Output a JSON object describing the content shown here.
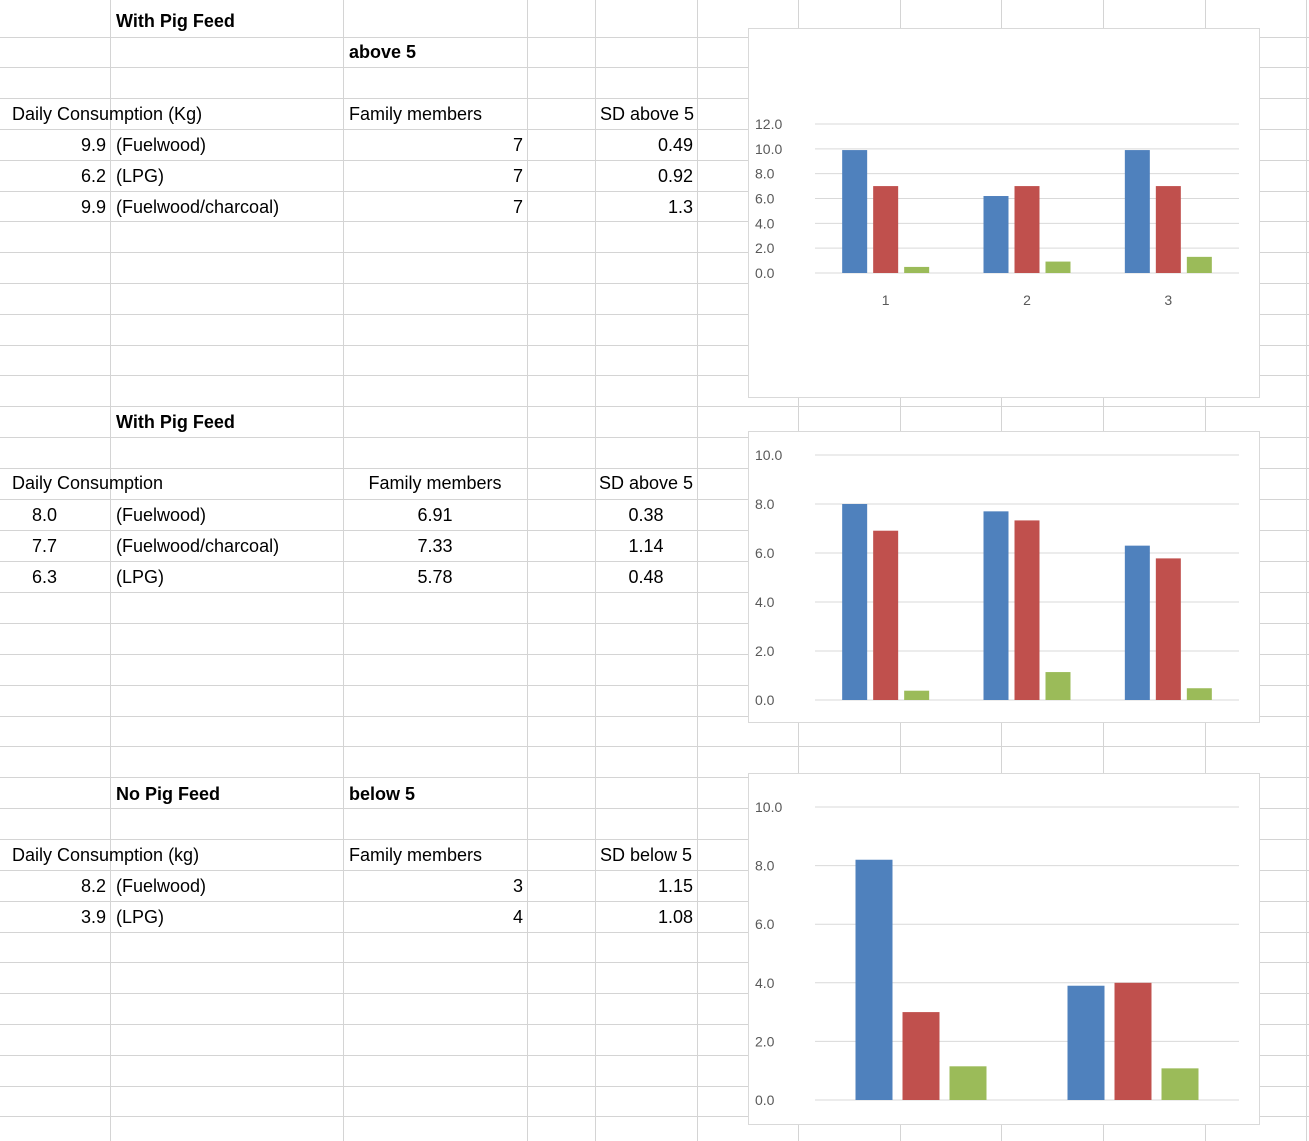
{
  "section1": {
    "title": "With Pig Feed",
    "subtitle": "above 5",
    "headers": {
      "consumption": "Daily Consumption (Kg)",
      "family": "Family members",
      "sd": "SD above 5"
    },
    "rows": [
      {
        "value": "9.9",
        "fuel": "(Fuelwood)",
        "family": "7",
        "sd": "0.49"
      },
      {
        "value": "6.2",
        "fuel": "(LPG)",
        "family": "7",
        "sd": "0.92"
      },
      {
        "value": "9.9",
        "fuel": "(Fuelwood/charcoal)",
        "family": "7",
        "sd": "1.3"
      }
    ]
  },
  "section2": {
    "title": "With Pig Feed",
    "headers": {
      "consumption": "Daily Consumption",
      "family": "Family members",
      "sd": "SD above 5"
    },
    "rows": [
      {
        "value": "8.0",
        "fuel": "(Fuelwood)",
        "family": "6.91",
        "sd": "0.38"
      },
      {
        "value": "7.7",
        "fuel": "(Fuelwood/charcoal)",
        "family": "7.33",
        "sd": "1.14"
      },
      {
        "value": "6.3",
        "fuel": "(LPG)",
        "family": "5.78",
        "sd": "0.48"
      }
    ]
  },
  "section3": {
    "title": "No Pig Feed",
    "subtitle": "below 5",
    "headers": {
      "consumption": "Daily Consumption (kg)",
      "family": "Family members",
      "sd": "SD below 5"
    },
    "rows": [
      {
        "value": "8.2",
        "fuel": "(Fuelwood)",
        "family": "3",
        "sd": "1.15"
      },
      {
        "value": "3.9",
        "fuel": "(LPG)",
        "family": "4",
        "sd": "1.08"
      }
    ]
  },
  "colors": {
    "series1": "#4f81bd",
    "series2": "#c0504d",
    "series3": "#9bbb59",
    "grid": "#d9d9d9",
    "axis_text": "#595959"
  },
  "chart_data": [
    {
      "type": "bar",
      "categories": [
        "1",
        "2",
        "3"
      ],
      "series": [
        {
          "values": [
            9.9,
            6.2,
            9.9
          ]
        },
        {
          "values": [
            7,
            7,
            7
          ]
        },
        {
          "values": [
            0.49,
            0.92,
            1.3
          ]
        }
      ],
      "ylim": [
        0,
        12
      ],
      "yticks": [
        "0.0",
        "2.0",
        "4.0",
        "6.0",
        "8.0",
        "10.0",
        "12.0"
      ],
      "grid": true
    },
    {
      "type": "bar",
      "categories": [
        "",
        "",
        ""
      ],
      "series": [
        {
          "values": [
            8.0,
            7.7,
            6.3
          ]
        },
        {
          "values": [
            6.91,
            7.33,
            5.78
          ]
        },
        {
          "values": [
            0.38,
            1.14,
            0.48
          ]
        }
      ],
      "ylim": [
        0,
        10
      ],
      "yticks": [
        "0.0",
        "2.0",
        "4.0",
        "6.0",
        "8.0",
        "10.0"
      ],
      "grid": true
    },
    {
      "type": "bar",
      "categories": [
        "",
        ""
      ],
      "series": [
        {
          "values": [
            8.2,
            3.9
          ]
        },
        {
          "values": [
            3,
            4
          ]
        },
        {
          "values": [
            1.15,
            1.08
          ]
        }
      ],
      "ylim": [
        0,
        10
      ],
      "yticks": [
        "0.0",
        "2.0",
        "4.0",
        "6.0",
        "8.0",
        "10.0"
      ],
      "grid": true
    }
  ]
}
